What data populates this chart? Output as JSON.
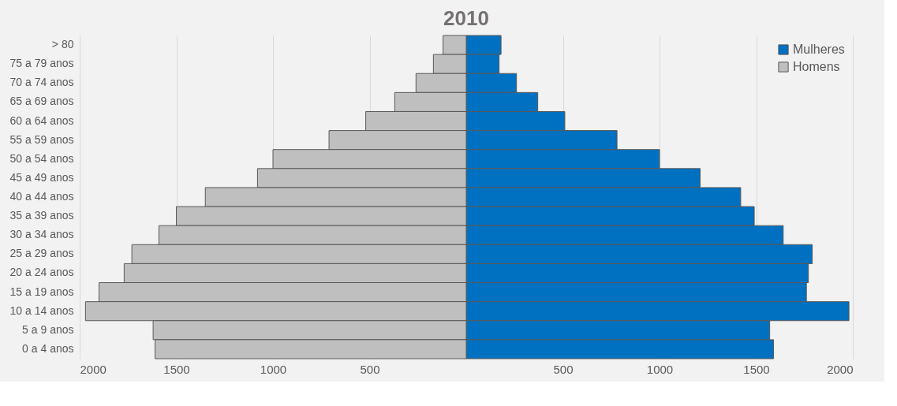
{
  "chart_data": {
    "type": "bar",
    "orientation": "horizontal",
    "title": "2010",
    "categories": [
      "> 80",
      "75 a 79 anos",
      "70 a 74 anos",
      "65 a 69 anos",
      "60 a 64 anos",
      "55 a 59 anos",
      "50 a 54 anos",
      "45 a 49 anos",
      "40 a 44 anos",
      "35 a 39 anos",
      "30 a 34 anos",
      "25 a 29 anos",
      "20 a 24 anos",
      "15 a 19 anos",
      "10 a 14 anos",
      "5 a 9 anos",
      "0 a 4 anos"
    ],
    "series": [
      {
        "name": "Mulheres",
        "color": "#0070c0",
        "values": [
          180,
          170,
          260,
          370,
          510,
          780,
          1000,
          1210,
          1420,
          1490,
          1640,
          1790,
          1770,
          1760,
          1980,
          1570,
          1590
        ]
      },
      {
        "name": "Homens",
        "color": "#bfbfbf",
        "values": [
          -120,
          -170,
          -260,
          -370,
          -520,
          -710,
          -1000,
          -1080,
          -1350,
          -1500,
          -1590,
          -1730,
          -1770,
          -1900,
          -1970,
          -1620,
          -1610
        ]
      }
    ],
    "xlim": [
      -2000,
      2000
    ],
    "xticks": [
      {
        "value": -2000,
        "label": "2000"
      },
      {
        "value": -1500,
        "label": "1500"
      },
      {
        "value": -1000,
        "label": "1000"
      },
      {
        "value": -500,
        "label": "500"
      },
      {
        "value": 0,
        "label": null
      },
      500,
      1000,
      1500,
      2000
    ],
    "stacked": true,
    "grid": "x",
    "legend": "top right"
  }
}
